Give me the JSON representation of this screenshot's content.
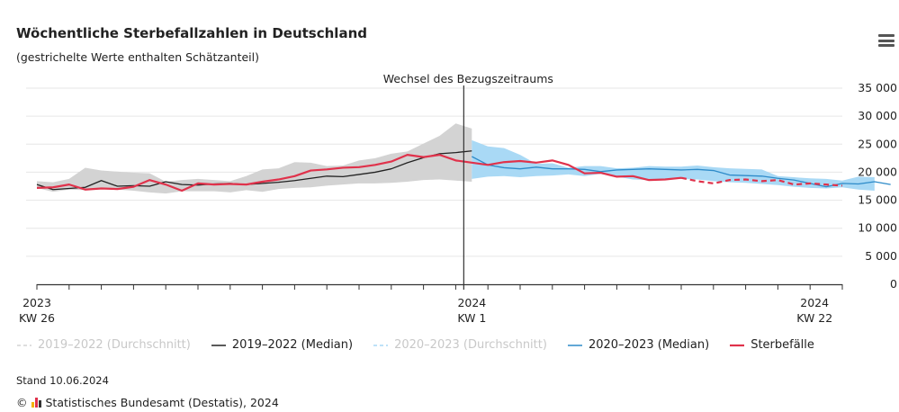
{
  "title": "Wöchentliche Sterbefallzahlen in Deutschland",
  "subtitle": "(gestrichelte Werte enthalten Schätzanteil)",
  "menu_icon": "hamburger-menu-icon",
  "chart_data": {
    "type": "line",
    "annotation": "Wechsel des Bezugszeitraums",
    "ylim": [
      0,
      35000
    ],
    "yticks": [
      "0",
      "5 000",
      "10 000",
      "15 000",
      "20 000",
      "25 000",
      "30 000",
      "35 000"
    ],
    "xlabels": [
      {
        "year": "2023",
        "week": "KW 26",
        "index": 0
      },
      {
        "year": "2024",
        "week": "KW 1",
        "index": 27
      },
      {
        "year": "2024",
        "week": "KW 22",
        "index": 48
      }
    ],
    "n_weeks": 51,
    "series": [
      {
        "name": "2019–2022 (Durchschnitt)",
        "type": "range",
        "color": "#d3d3d3",
        "visible": false,
        "start": 0,
        "low": [
          17200,
          16500,
          16900,
          16800,
          17000,
          16900,
          16700,
          16400,
          16200,
          16600,
          16600,
          16600,
          16400,
          16800,
          16500,
          17000,
          17200,
          17300,
          17600,
          17800,
          18000,
          18000,
          18100,
          18300,
          18600,
          18700,
          18500,
          18300
        ],
        "high": [
          18400,
          18200,
          18800,
          20800,
          20300,
          20100,
          19900,
          19800,
          18300,
          18600,
          18800,
          18600,
          18400,
          19300,
          20500,
          20700,
          21800,
          21700,
          21100,
          21200,
          22100,
          22500,
          23300,
          23700,
          25100,
          26500,
          28700,
          27800
        ]
      },
      {
        "name": "2019–2022 (Median)",
        "type": "line",
        "color": "#222222",
        "visible": true,
        "start": 0,
        "values": [
          17800,
          16900,
          17100,
          17300,
          18500,
          17500,
          17600,
          17500,
          18300,
          17800,
          17700,
          17900,
          18000,
          17800,
          18000,
          18200,
          18500,
          18900,
          19300,
          19200,
          19600,
          20000,
          20600,
          21700,
          22600,
          23300,
          23500,
          23800
        ]
      },
      {
        "name": "2020–2023 (Durchschnitt)",
        "type": "range",
        "color": "#a9d9f5",
        "visible": false,
        "start": 27,
        "low": [
          18800,
          19200,
          19300,
          19100,
          19300,
          19400,
          19600,
          19300,
          19700,
          19200,
          18700,
          18600,
          18700,
          18800,
          18700,
          18400,
          18200,
          18100,
          17900,
          17700,
          17400,
          17200,
          17100,
          17300,
          16900,
          16700
        ],
        "high": [
          25700,
          24600,
          24300,
          23100,
          21500,
          21600,
          20800,
          21100,
          21100,
          20700,
          20800,
          21100,
          21000,
          21000,
          21200,
          20900,
          20700,
          20600,
          20500,
          19300,
          19100,
          18900,
          18800,
          18500,
          19200,
          19100
        ]
      },
      {
        "name": "2020–2023 (Median)",
        "type": "line",
        "color": "#2e8bc9",
        "visible": true,
        "start": 27,
        "values": [
          22800,
          21300,
          20800,
          20600,
          20900,
          20600,
          20600,
          20500,
          20100,
          20400,
          20500,
          20600,
          20500,
          20400,
          20500,
          20300,
          19500,
          19400,
          19300,
          18900,
          18600,
          18000,
          17400,
          18000,
          17900,
          18300,
          17800
        ]
      },
      {
        "name": "Sterbefälle",
        "type": "line",
        "color": "#e0324b",
        "visible": true,
        "start": 0,
        "values": [
          17200,
          17300,
          17800,
          16900,
          17100,
          17000,
          17400,
          18600,
          17800,
          16700,
          18000,
          17800,
          17900,
          17800,
          18300,
          18700,
          19300,
          20300,
          20500,
          20800,
          20900,
          21300,
          21900,
          23100,
          22700,
          23100,
          22100,
          21700,
          21300,
          21800,
          22000,
          21700,
          22100,
          21300,
          19800,
          19900,
          19200,
          19300,
          18600,
          18700,
          19000,
          18400,
          18000,
          18600,
          18700,
          18400,
          18600,
          17800,
          18000,
          17800,
          17600
        ],
        "estimated_from": 40
      }
    ]
  },
  "legend": [
    {
      "label": "2019–2022 (Durchschnitt)",
      "color": "#d3d3d3",
      "dash": true,
      "off": true
    },
    {
      "label": "2019–2022 (Median)",
      "color": "#222222",
      "dash": false,
      "off": false
    },
    {
      "label": "2020–2023 (Durchschnitt)",
      "color": "#a9d9f5",
      "dash": true,
      "off": true
    },
    {
      "label": "2020–2023 (Median)",
      "color": "#2e8bc9",
      "dash": false,
      "off": false
    },
    {
      "label": "Sterbefälle",
      "color": "#e0324b",
      "dash": false,
      "off": false
    }
  ],
  "stand": "Stand 10.06.2024",
  "credit": "Statistisches Bundesamt (Destatis), 2024",
  "copyright": "©"
}
